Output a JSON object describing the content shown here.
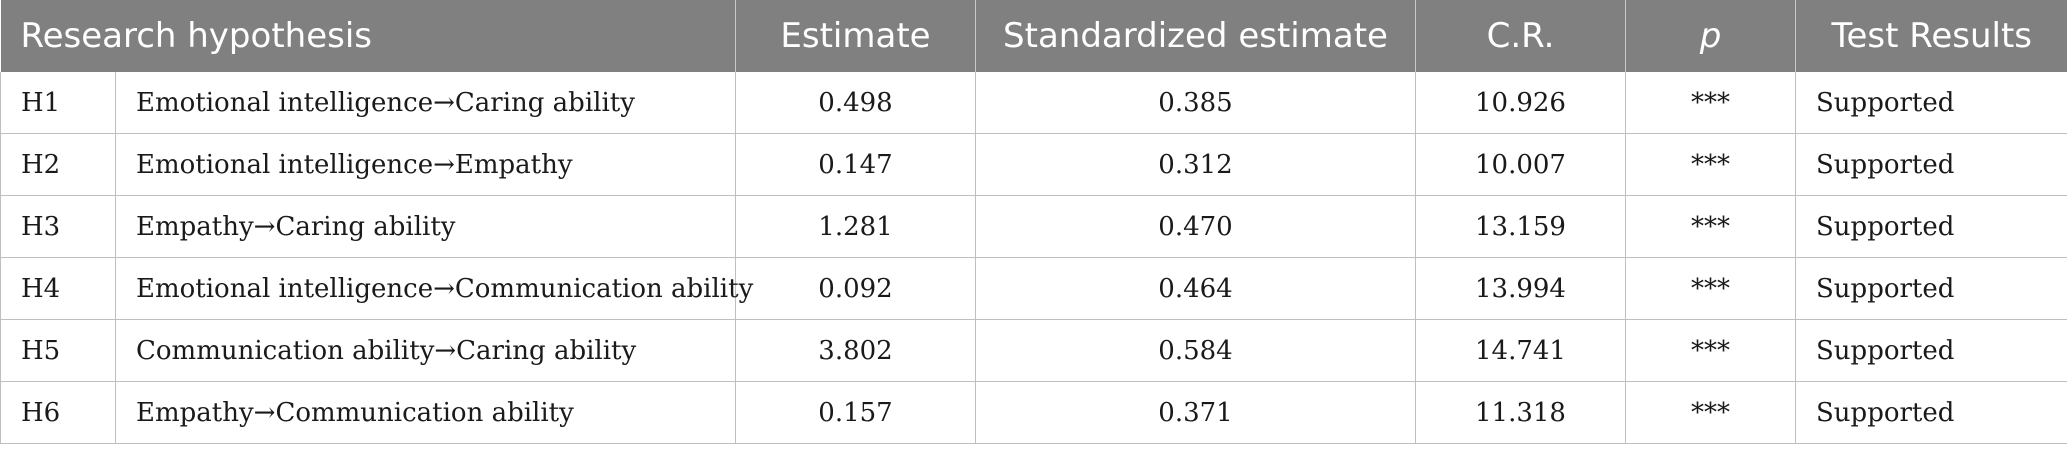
{
  "table": {
    "headers": {
      "hypothesis": "Research hypothesis",
      "estimate": "Estimate",
      "standardized": "Standardized estimate",
      "cr": "C.R.",
      "p": "p",
      "result": "Test Results"
    },
    "rows": [
      {
        "code": "H1",
        "path": "Emotional intelligence→Caring ability",
        "estimate": "0.498",
        "standardized": "0.385",
        "cr": "10.926",
        "p": "***",
        "result": "Supported"
      },
      {
        "code": "H2",
        "path": "Emotional intelligence→Empathy",
        "estimate": "0.147",
        "standardized": "0.312",
        "cr": "10.007",
        "p": "***",
        "result": "Supported"
      },
      {
        "code": "H3",
        "path": "Empathy→Caring ability",
        "estimate": "1.281",
        "standardized": "0.470",
        "cr": "13.159",
        "p": "***",
        "result": "Supported"
      },
      {
        "code": "H4",
        "path": "Emotional intelligence→Communication ability",
        "estimate": "0.092",
        "standardized": "0.464",
        "cr": "13.994",
        "p": "***",
        "result": "Supported"
      },
      {
        "code": "H5",
        "path": "Communication ability→Caring ability",
        "estimate": "3.802",
        "standardized": "0.584",
        "cr": "14.741",
        "p": "***",
        "result": "Supported"
      },
      {
        "code": "H6",
        "path": "Empathy→Communication ability",
        "estimate": "0.157",
        "standardized": "0.371",
        "cr": "11.318",
        "p": "***",
        "result": "Supported"
      }
    ]
  }
}
